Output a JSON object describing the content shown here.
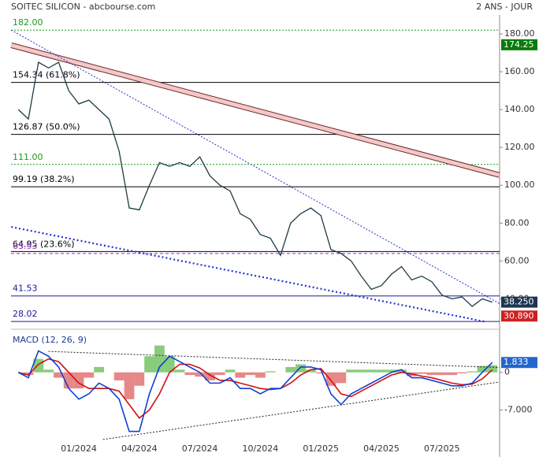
{
  "header": {
    "title": "SOITEC SILICON - abcbourse.com",
    "period": "2 ANS - JOUR"
  },
  "chart_data": [
    {
      "type": "line",
      "categories": [
        null,
        null,
        null,
        null,
        null,
        null,
        "01/2024",
        null,
        null,
        null,
        null,
        null,
        "04/2024",
        null,
        null,
        null,
        null,
        null,
        "07/2024",
        null,
        null,
        null,
        null,
        null,
        "10/2024",
        null,
        null,
        null,
        null,
        null,
        "01/2025",
        null,
        null,
        null,
        null,
        null,
        "04/2025",
        null,
        null,
        null,
        null,
        null,
        "07/2025",
        null,
        null,
        null,
        null,
        null
      ],
      "series": [
        {
          "name": "SOITEC",
          "color": "#1d3c44",
          "values": [
            140,
            135,
            165,
            162,
            165,
            150,
            143,
            145,
            140,
            135,
            118,
            88,
            87,
            100,
            112,
            110,
            112,
            110,
            115,
            105,
            100,
            97,
            85,
            82,
            74,
            72,
            63,
            80,
            85,
            88,
            84,
            66,
            64,
            60,
            52,
            45,
            47,
            53,
            57,
            50,
            52,
            49,
            42,
            40,
            41,
            36,
            40,
            38.25
          ]
        }
      ],
      "ylim": [
        26,
        190
      ],
      "yticks": [
        {
          "value": 40,
          "label": "40.00"
        },
        {
          "value": 60,
          "label": "60.00"
        },
        {
          "value": 80,
          "label": "80.00"
        },
        {
          "value": 100,
          "label": "100.00"
        },
        {
          "value": 120,
          "label": "120.00"
        },
        {
          "value": 140,
          "label": "140.00"
        },
        {
          "value": 160,
          "label": "160.00"
        },
        {
          "value": 180,
          "label": "180.00"
        }
      ],
      "levels": [
        {
          "value": 182,
          "label": "182.00",
          "color": "#1a9a1a",
          "style": "dotted"
        },
        {
          "value": 154.34,
          "label": "154.34  (61.8%)",
          "color": "#000000",
          "style": "solid"
        },
        {
          "value": 126.87,
          "label": "126.87  (50.0%)",
          "color": "#000000",
          "style": "solid"
        },
        {
          "value": 111,
          "label": "111.00",
          "color": "#1a9a1a",
          "style": "dotted"
        },
        {
          "value": 99.19,
          "label": "99.19  (38.2%)",
          "color": "#000000",
          "style": "solid"
        },
        {
          "value": 64.95,
          "label": "64.95  (23.6%)",
          "color": "#000000",
          "style": "solid"
        },
        {
          "value": 63.93,
          "label": "63.93",
          "color": "#9933cc",
          "style": "dashed"
        },
        {
          "value": 41.53,
          "label": "41.53",
          "color": "#1a1a9a",
          "style": "solid"
        },
        {
          "value": 28.02,
          "label": "28.02",
          "color": "#1a1a9a",
          "style": "solid"
        }
      ],
      "trendlines": [
        {
          "from": [
            -0.7,
            174
          ],
          "to": [
            47.7,
            105.4
          ],
          "color": "#6b2a2a",
          "style": "channel"
        },
        {
          "from": [
            -0.7,
            182
          ],
          "to": [
            47.7,
            37.5
          ],
          "color": "#2233cc",
          "style": "dotted"
        },
        {
          "from": [
            -0.7,
            78
          ],
          "to": [
            46.2,
            28
          ],
          "color": "#2233cc",
          "style": "thick-dotted"
        }
      ],
      "badges": [
        {
          "value": 174.25,
          "label": "174.25",
          "color": "#0a7a0a"
        },
        {
          "value": 38.25,
          "label": "38.250",
          "color": "#1d3550"
        },
        {
          "value": 30.89,
          "label": "30.890",
          "color": "#cc2020"
        }
      ]
    },
    {
      "type": "macd",
      "title": "MACD (12, 26, 9)",
      "series": [
        {
          "name": "MACD",
          "color": "#1040d0",
          "values": [
            0,
            -1,
            4,
            3,
            1,
            -3,
            -5,
            -4,
            -2,
            -3,
            -5,
            -11,
            -11,
            -4,
            1,
            3,
            2,
            1,
            0,
            -2,
            -2,
            -1,
            -3,
            -3,
            -4,
            -3,
            -3,
            -1,
            1,
            1,
            0.5,
            -4,
            -6,
            -4,
            -3,
            -2,
            -1,
            0,
            0.5,
            -1,
            -1,
            -1.5,
            -2,
            -2.5,
            -2.5,
            -2,
            0,
            1.833
          ]
        },
        {
          "name": "Signal",
          "color": "#d01010",
          "values": [
            0,
            -0.5,
            1.5,
            2.5,
            2,
            0,
            -2,
            -3,
            -3,
            -3,
            -3.5,
            -6,
            -8.5,
            -7,
            -4,
            0,
            1.5,
            1.5,
            0.8,
            -0.5,
            -1.5,
            -1.5,
            -2,
            -2.5,
            -3,
            -3.2,
            -3,
            -2,
            -0.5,
            0.5,
            0.7,
            -1.5,
            -4,
            -4.5,
            -3.5,
            -2.5,
            -1.5,
            -0.5,
            0,
            -0.3,
            -0.7,
            -1,
            -1.5,
            -2,
            -2.3,
            -2.2,
            -1.2,
            0.5
          ]
        },
        {
          "name": "Histogram",
          "color": "#6cbf5a",
          "negative_color": "#e06a6a",
          "values": [
            0,
            -0.5,
            2.5,
            0.5,
            -1,
            -3,
            -3,
            -1,
            1,
            0,
            -1.5,
            -5,
            -2.5,
            3,
            5,
            3,
            0.5,
            -0.5,
            -0.8,
            -1.5,
            -0.5,
            0.5,
            -1,
            -0.5,
            -1,
            0.2,
            0,
            1,
            1.5,
            0.5,
            -0.2,
            -2.5,
            -2,
            0.5,
            0.5,
            0.5,
            0.5,
            0.5,
            0.5,
            -0.7,
            -0.3,
            -0.5,
            -0.5,
            -0.5,
            -0.2,
            0.2,
            1.2,
            1.333
          ]
        }
      ],
      "ylim": [
        -15,
        7
      ],
      "yticks": [
        0,
        {
          "value": -7,
          "label": "-7.000"
        }
      ],
      "trendlines": [
        {
          "from": [
            3,
            3.9
          ],
          "to": [
            47.7,
            0.9
          ],
          "color": "#222222",
          "style": "dotted"
        },
        {
          "from": [
            8.4,
            -12.5
          ],
          "to": [
            47.7,
            -1.8
          ],
          "color": "#222222",
          "style": "dotted"
        }
      ],
      "badges": [
        {
          "value": 1.833,
          "label": "1.833",
          "color": "#2266cc"
        }
      ]
    }
  ]
}
